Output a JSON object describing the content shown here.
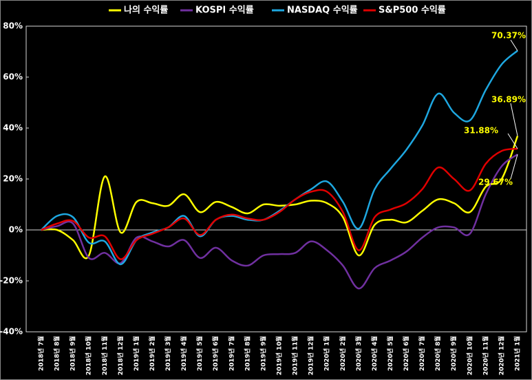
{
  "chart_data": {
    "type": "line",
    "categories": [
      "2018년 7월",
      "2018년 8월",
      "2018년 9월",
      "2018년 10월",
      "2018년 11월",
      "2018년 12월",
      "2019년 1월",
      "2019년 2월",
      "2019년 3월",
      "2019년 4월",
      "2019년 5월",
      "2019년 6월",
      "2019년 7월",
      "2019년 8월",
      "2019년 9월",
      "2019년 10월",
      "2019년 11월",
      "2019년 12월",
      "2020년 1월",
      "2020년 2월",
      "2020년 3월",
      "2020년 4월",
      "2020년 5월",
      "2020년 6월",
      "2020년 7월",
      "2020년 8월",
      "2020년 9월",
      "2020년 10월",
      "2020년 11월",
      "2020년 12월",
      "2021년 1월"
    ],
    "series": [
      {
        "name": "나의 수익률",
        "color": "#ffff00",
        "values": [
          0,
          0,
          -4,
          -10,
          21,
          -1,
          11,
          10.5,
          9.5,
          14,
          7,
          11,
          9,
          6.5,
          10,
          9.5,
          10,
          11.5,
          10.5,
          5,
          -10,
          2,
          4,
          3,
          7.5,
          12,
          10.5,
          7,
          17,
          20,
          36.89
        ],
        "value_labels": [
          null,
          null,
          null,
          null,
          null,
          null,
          null,
          null,
          null,
          null,
          null,
          null,
          null,
          null,
          null,
          null,
          null,
          null,
          null,
          null,
          null,
          null,
          null,
          null,
          null,
          null,
          null,
          null,
          null,
          null,
          "36.89%"
        ]
      },
      {
        "name": "KOSPI 수익률",
        "color": "#7030a0",
        "values": [
          0,
          1.5,
          2.5,
          -11,
          -9,
          -13,
          -3,
          -4.5,
          -6.5,
          -4,
          -11,
          -7,
          -12,
          -14,
          -10,
          -9.5,
          -9,
          -4.5,
          -8,
          -14,
          -23,
          -15,
          -12,
          -8.5,
          -3,
          1,
          1,
          -1.5,
          14,
          25,
          29.67
        ],
        "value_labels": [
          null,
          null,
          null,
          null,
          null,
          null,
          null,
          null,
          null,
          null,
          null,
          null,
          null,
          null,
          null,
          null,
          null,
          null,
          null,
          null,
          null,
          null,
          null,
          null,
          null,
          null,
          null,
          null,
          null,
          null,
          "29.67%"
        ]
      },
      {
        "name": "NASDAQ 수익률",
        "color": "#1ea7e0",
        "values": [
          0,
          5.5,
          5,
          -5,
          -4.5,
          -13.5,
          -4,
          -1,
          1,
          5.5,
          -2.5,
          4,
          5.5,
          4,
          4,
          7.5,
          12,
          16,
          19,
          11,
          0.5,
          16,
          24,
          31.5,
          41,
          53.5,
          46,
          43,
          55,
          65,
          70.37
        ],
        "value_labels": [
          null,
          null,
          null,
          null,
          null,
          null,
          null,
          null,
          null,
          null,
          null,
          null,
          null,
          null,
          null,
          null,
          null,
          null,
          null,
          null,
          null,
          null,
          null,
          null,
          null,
          null,
          null,
          null,
          null,
          null,
          "70.37%"
        ]
      },
      {
        "name": "S&P500 수익률",
        "color": "#e00000",
        "values": [
          0,
          2.5,
          3.5,
          -3,
          -2.5,
          -11.5,
          -4,
          -1.5,
          1,
          4.5,
          -2,
          4,
          6,
          4.5,
          4,
          7,
          12,
          15,
          15,
          7,
          -8,
          5,
          8,
          10.5,
          16,
          24.5,
          20,
          15.5,
          26,
          31,
          31.88
        ],
        "value_labels": [
          null,
          null,
          null,
          null,
          null,
          null,
          null,
          null,
          null,
          null,
          null,
          null,
          null,
          null,
          null,
          null,
          null,
          null,
          null,
          null,
          null,
          null,
          null,
          null,
          null,
          null,
          null,
          null,
          null,
          null,
          "31.88%"
        ]
      }
    ],
    "ylim": [
      -40,
      80
    ],
    "yticks": [
      {
        "value": -40,
        "label": "-40%"
      },
      {
        "value": -20,
        "label": "-20%"
      },
      {
        "value": 0,
        "label": "0%"
      },
      {
        "value": 20,
        "label": "20%"
      },
      {
        "value": 40,
        "label": "40%"
      },
      {
        "value": 60,
        "label": "60%"
      },
      {
        "value": 80,
        "label": "80%"
      }
    ],
    "legend": "top"
  }
}
